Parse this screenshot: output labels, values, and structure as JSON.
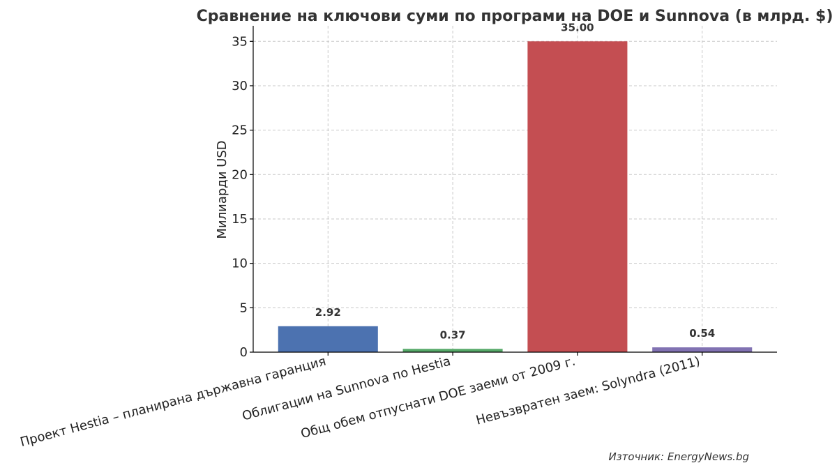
{
  "chart_data": {
    "type": "bar",
    "title": "Сравнение на ключови суми по програми на DOE и Sunnova (в млрд. $)",
    "xlabel": "",
    "ylabel": "Милиарди USD",
    "ylim": [
      0,
      36.75
    ],
    "yticks": [
      0,
      5,
      10,
      15,
      20,
      25,
      30,
      35
    ],
    "grid": true,
    "categories": [
      "Проект Hestia – планирана държавна гаранция",
      "Облигации на Sunnova по Hestia",
      "Общ обем отпуснати DOE заеми от 2009 г.",
      "Невъзвратен заем: Solyndra (2011)"
    ],
    "values": [
      2.92,
      0.37,
      35.0,
      0.54
    ],
    "data_labels": [
      "2.92",
      "0.37",
      "35.00",
      "0.54"
    ],
    "colors": [
      "#4c72b0",
      "#55a868",
      "#c44e52",
      "#8172b2"
    ],
    "source": "Източник: EnergyNews.bg"
  }
}
